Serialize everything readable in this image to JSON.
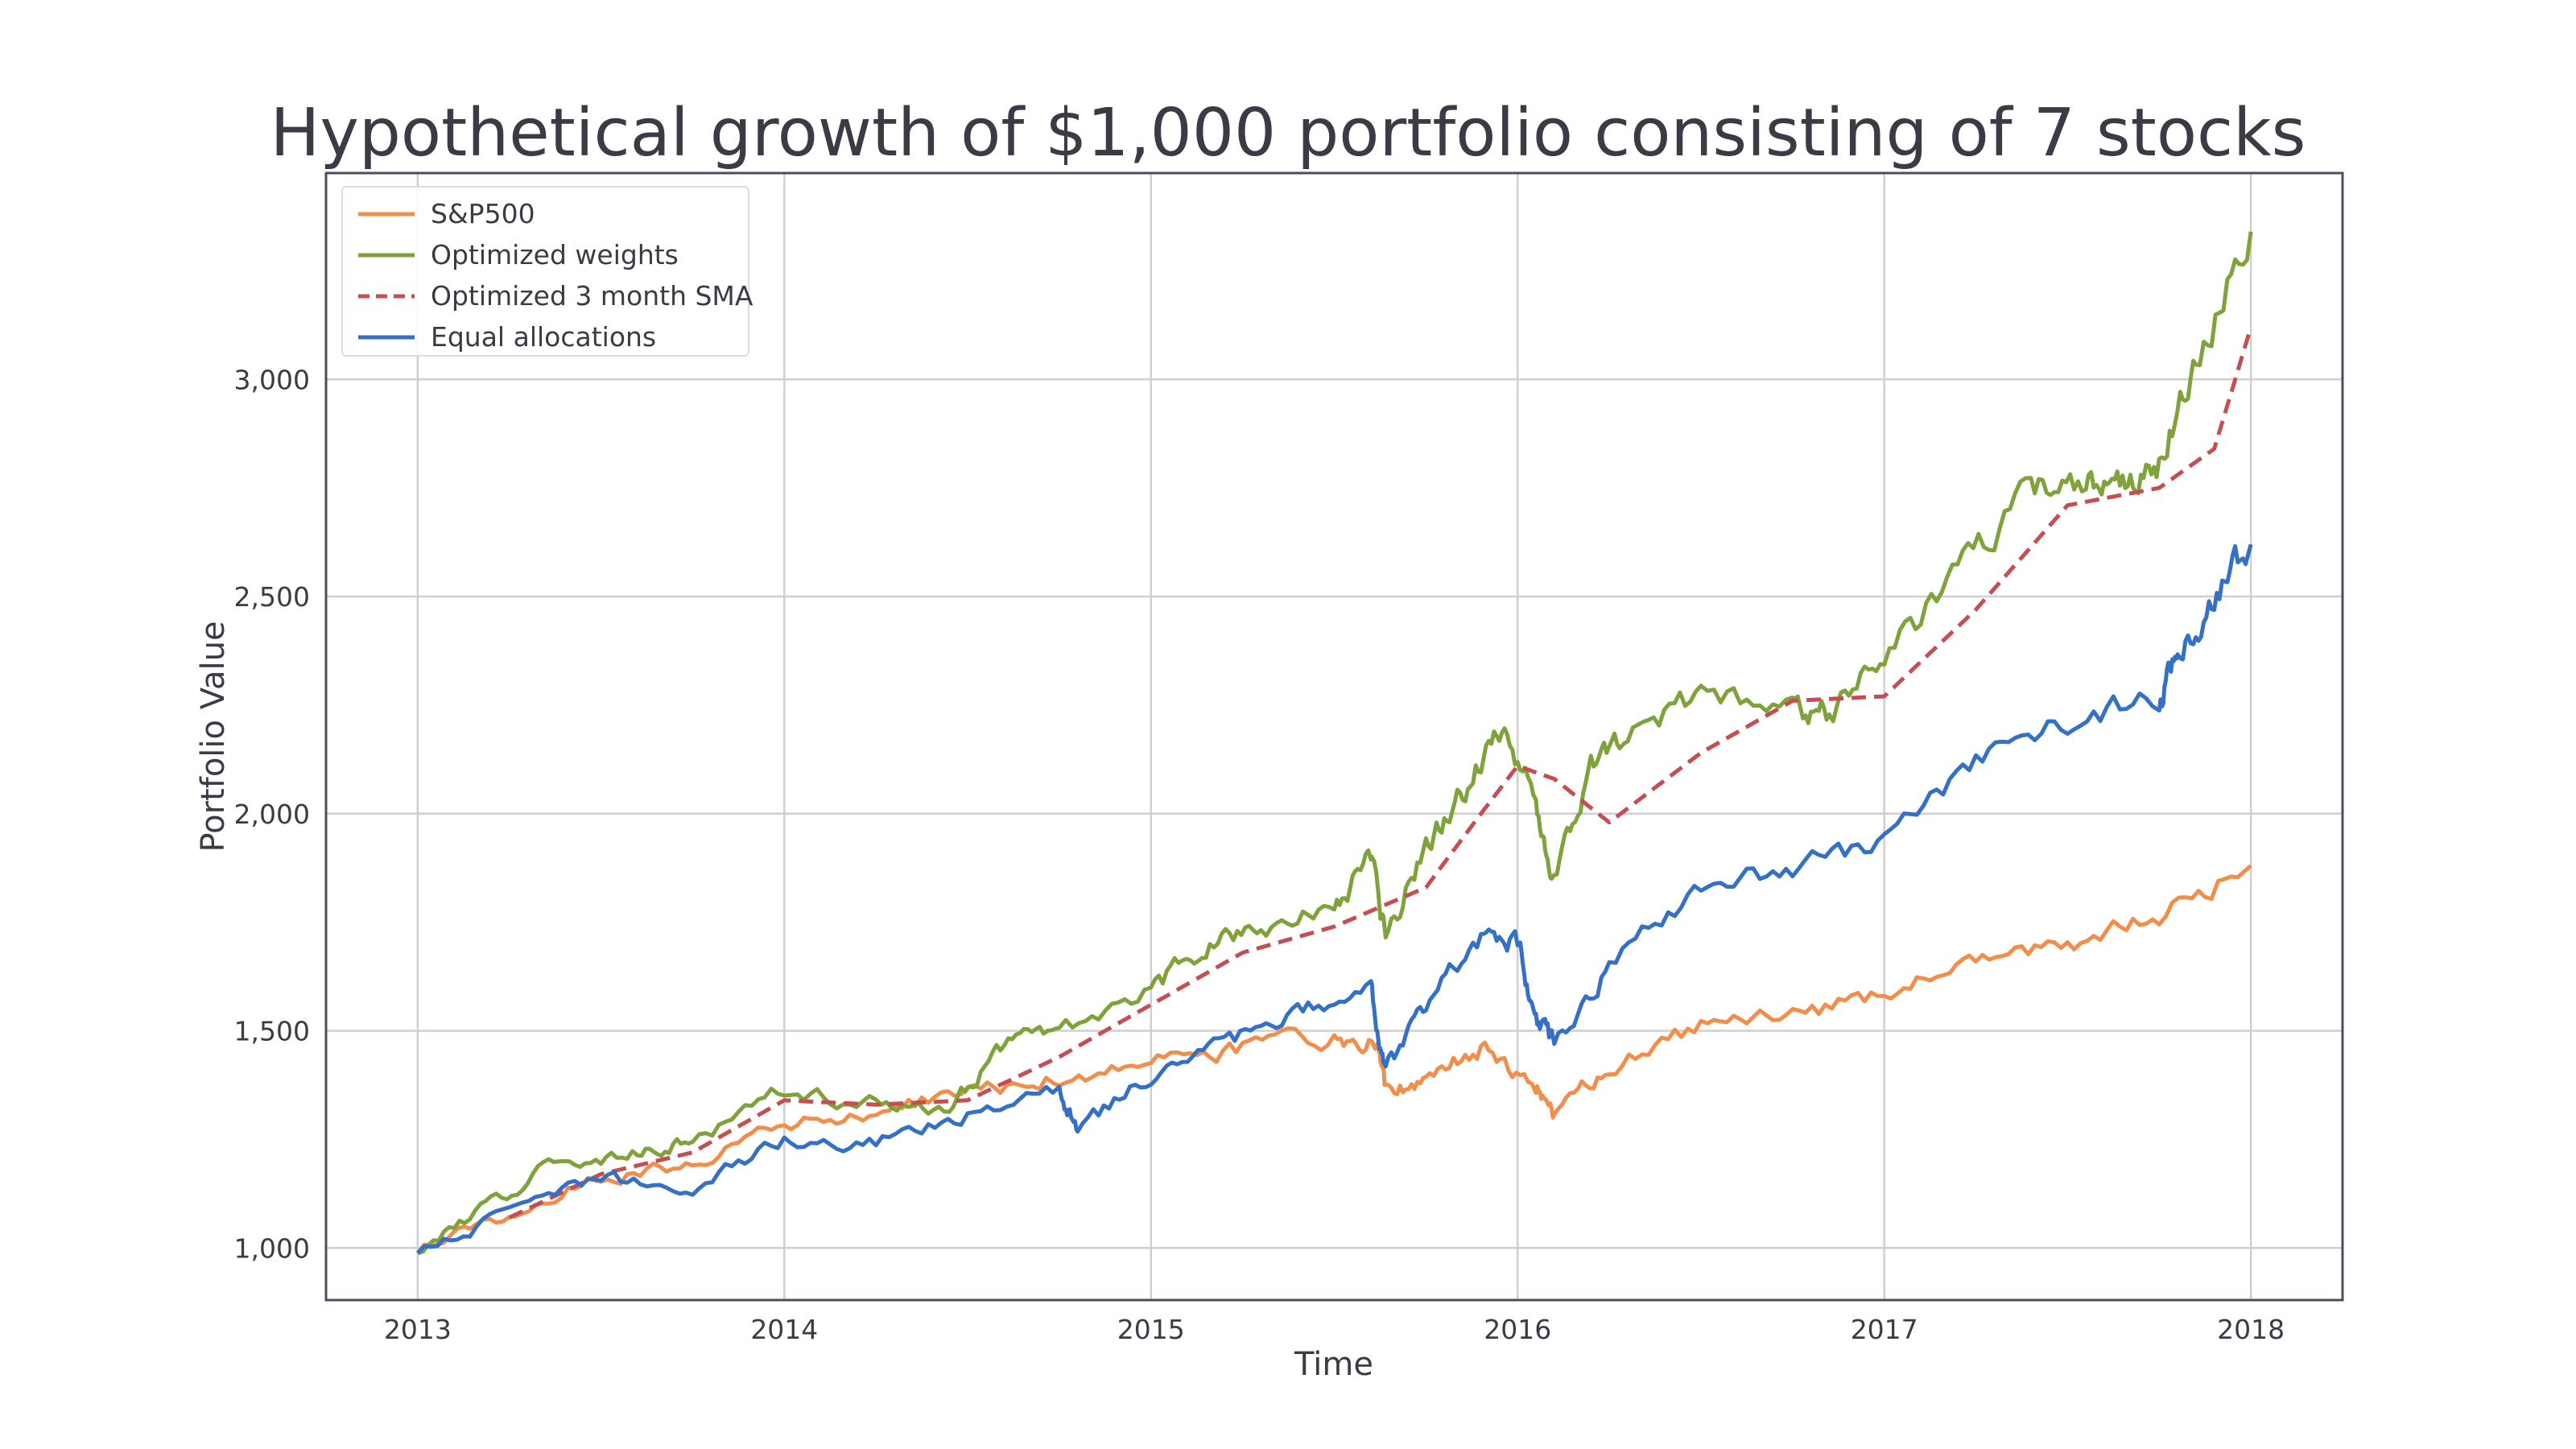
{
  "chart_data": {
    "type": "line",
    "title": "Hypothetical growth of $1,000 portfolio consisting of 7 stocks",
    "xlabel": "Time",
    "ylabel": "Portfolio Value",
    "xlim": [
      2012.75,
      2018.25
    ],
    "ylim": [
      880,
      3475
    ],
    "xticks": [
      2013,
      2014,
      2015,
      2016,
      2017,
      2018
    ],
    "xtick_labels": [
      "2013",
      "2014",
      "2015",
      "2016",
      "2017",
      "2018"
    ],
    "yticks": [
      1000,
      1500,
      2000,
      2500,
      3000
    ],
    "ytick_labels": [
      "1,000",
      "1,500",
      "2,000",
      "2,500",
      "3,000"
    ],
    "grid": true,
    "legend_position": "upper-left",
    "series": [
      {
        "name": "S&P500",
        "color": "#f28e4c",
        "style": "solid",
        "x": [
          2013.0,
          2013.25,
          2013.5,
          2013.75,
          2014.0,
          2014.25,
          2014.5,
          2014.75,
          2015.0,
          2015.25,
          2015.5,
          2015.62,
          2015.64,
          2015.75,
          2015.9,
          2016.05,
          2016.1,
          2016.25,
          2016.5,
          2016.75,
          2017.0,
          2017.25,
          2017.5,
          2017.75,
          2018.0
        ],
        "y": [
          1000,
          1080,
          1160,
          1200,
          1280,
          1310,
          1360,
          1395,
          1430,
          1460,
          1480,
          1470,
          1360,
          1390,
          1460,
          1370,
          1300,
          1420,
          1510,
          1530,
          1590,
          1650,
          1700,
          1770,
          1880
        ]
      },
      {
        "name": "Optimized weights",
        "color": "#7fa33a",
        "style": "solid",
        "x": [
          2013.0,
          2013.2,
          2013.4,
          2013.6,
          2013.75,
          2014.0,
          2014.25,
          2014.45,
          2014.6,
          2014.75,
          2015.0,
          2015.15,
          2015.3,
          2015.5,
          2015.6,
          2015.64,
          2015.75,
          2015.85,
          2015.95,
          2016.05,
          2016.1,
          2016.2,
          2016.3,
          2016.5,
          2016.75,
          2016.85,
          2017.0,
          2017.2,
          2017.4,
          2017.55,
          2017.65,
          2017.75,
          2017.85,
          2018.0
        ],
        "y": [
          1000,
          1100,
          1210,
          1220,
          1240,
          1370,
          1330,
          1330,
          1470,
          1490,
          1590,
          1700,
          1740,
          1790,
          1900,
          1720,
          1920,
          2050,
          2190,
          2030,
          1840,
          2100,
          2180,
          2280,
          2260,
          2230,
          2350,
          2550,
          2740,
          2780,
          2770,
          2800,
          3050,
          3340
        ]
      },
      {
        "name": "Optimized 3 month SMA",
        "color": "#c44e52",
        "style": "dashed",
        "x": [
          2013.25,
          2013.5,
          2013.75,
          2014.0,
          2014.25,
          2014.5,
          2014.75,
          2015.0,
          2015.25,
          2015.5,
          2015.75,
          2015.9,
          2016.0,
          2016.1,
          2016.25,
          2016.5,
          2016.75,
          2017.0,
          2017.25,
          2017.5,
          2017.75,
          2017.9,
          2018.0
        ],
        "y": [
          1070,
          1170,
          1220,
          1340,
          1330,
          1340,
          1440,
          1560,
          1680,
          1740,
          1830,
          2000,
          2110,
          2080,
          1980,
          2140,
          2260,
          2270,
          2470,
          2710,
          2750,
          2840,
          3120
        ]
      },
      {
        "name": "Equal allocations",
        "color": "#3470c4",
        "style": "solid",
        "x": [
          2013.0,
          2013.25,
          2013.5,
          2013.75,
          2014.0,
          2014.25,
          2014.5,
          2014.75,
          2014.8,
          2015.0,
          2015.2,
          2015.4,
          2015.6,
          2015.64,
          2015.75,
          2015.9,
          2016.0,
          2016.05,
          2016.1,
          2016.25,
          2016.5,
          2016.75,
          2017.0,
          2017.25,
          2017.5,
          2017.75,
          2017.8,
          2017.9,
          2018.0
        ],
        "y": [
          1000,
          1080,
          1160,
          1140,
          1250,
          1240,
          1310,
          1370,
          1270,
          1400,
          1460,
          1560,
          1590,
          1410,
          1560,
          1720,
          1700,
          1530,
          1470,
          1650,
          1830,
          1870,
          1940,
          2110,
          2220,
          2270,
          2350,
          2500,
          2620
        ]
      }
    ]
  }
}
